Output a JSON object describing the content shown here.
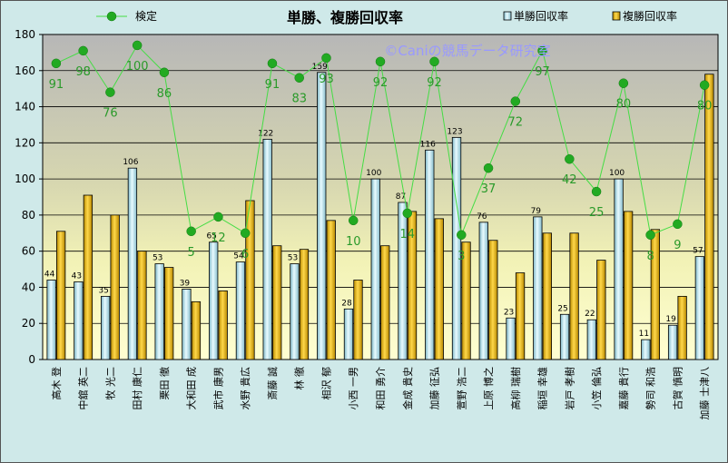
{
  "chart_data": {
    "type": "bar",
    "title": "単勝、複勝回収率",
    "watermark": "©Caniの競馬データ研究室",
    "ylim": [
      0,
      180
    ],
    "yticks": [
      0,
      20,
      40,
      60,
      80,
      100,
      120,
      140,
      160,
      180
    ],
    "categories": [
      "高木 登",
      "中舘 英二",
      "牧 光二",
      "田村 康仁",
      "栗田 徹",
      "大和田 成",
      "武市 康男",
      "水野 貴広",
      "斎藤 誠",
      "林 徹",
      "相沢 郁",
      "小西 一男",
      "和田 勇介",
      "金成 貴史",
      "加藤 征弘",
      "萱野 浩二",
      "上原 博之",
      "高柳 瑞樹",
      "稲垣 幸雄",
      "岩戸 孝樹",
      "小笠 倫弘",
      "嘉藤 貴行",
      "勢司 和浩",
      "古賀 慎明",
      "加藤 士津八"
    ],
    "series": [
      {
        "name": "単勝回収率",
        "color": "#c8ecf4",
        "values": [
          44,
          43,
          35,
          106,
          53,
          39,
          65,
          54,
          122,
          53,
          159,
          28,
          100,
          87,
          116,
          123,
          76,
          23,
          79,
          25,
          22,
          100,
          11,
          19,
          57
        ]
      },
      {
        "name": "複勝回収率",
        "color": "#f5c000",
        "values": [
          71,
          91,
          80,
          60,
          51,
          32,
          38,
          88,
          63,
          61,
          77,
          44,
          63,
          82,
          78,
          65,
          66,
          48,
          70,
          70,
          55,
          82,
          72,
          35,
          158
        ]
      }
    ],
    "line_series": {
      "name": "検定",
      "color": "#22bb22",
      "values": [
        91,
        98,
        76,
        100,
        86,
        5,
        12,
        6,
        91,
        83,
        93,
        10,
        92,
        14,
        92,
        3,
        37,
        72,
        97,
        42,
        25,
        80,
        8,
        9,
        80
      ],
      "y_positions": [
        164,
        171,
        148,
        174,
        159,
        71,
        79,
        70,
        164,
        156,
        167,
        77,
        165,
        81,
        165,
        69,
        106,
        143,
        171,
        111,
        93,
        153,
        69,
        75,
        152
      ]
    },
    "legend_position": "top"
  }
}
